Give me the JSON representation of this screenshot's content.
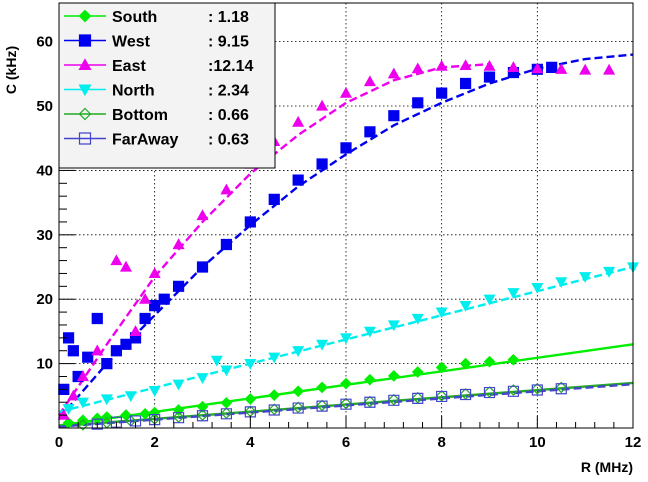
{
  "chart_data": {
    "type": "scatter",
    "xlabel": "R (MHz)",
    "ylabel": "C (kHz)",
    "xlim": [
      0,
      12
    ],
    "ylim": [
      0,
      66
    ],
    "x_ticks": [
      "0",
      "2",
      "4",
      "6",
      "8",
      "10",
      "12"
    ],
    "y_ticks": [
      "10",
      "20",
      "30",
      "40",
      "50",
      "60"
    ],
    "grid": true,
    "legend_position": "top-left",
    "series": [
      {
        "name": "South",
        "legend_value": ": 1.18",
        "color": "#00ee00",
        "marker": "diamond-filled",
        "fit_style": "solid",
        "x": [
          0.2,
          0.5,
          0.8,
          1.0,
          1.4,
          1.8,
          2.0,
          2.5,
          3.0,
          3.5,
          4.0,
          4.5,
          5.0,
          5.5,
          6.0,
          6.5,
          7.0,
          7.5,
          8.0,
          8.5,
          9.0,
          9.5
        ],
        "y": [
          0.8,
          1.2,
          1.5,
          1.7,
          2.0,
          2.2,
          2.4,
          2.8,
          3.3,
          3.9,
          4.5,
          5.1,
          5.7,
          6.3,
          6.9,
          7.5,
          8.1,
          8.7,
          9.4,
          10.0,
          10.3,
          10.6
        ],
        "fit_x": [
          0,
          12
        ],
        "fit_y": [
          0.4,
          13.0
        ]
      },
      {
        "name": "West",
        "legend_value": ": 9.15",
        "color": "#0000ee",
        "marker": "square-filled",
        "fit_style": "dashed",
        "x": [
          0.1,
          0.2,
          0.3,
          0.4,
          0.6,
          0.8,
          1.0,
          1.2,
          1.4,
          1.6,
          1.8,
          2.0,
          2.2,
          2.5,
          3.0,
          3.5,
          4.0,
          4.5,
          5.0,
          5.5,
          6.0,
          6.5,
          7.0,
          7.5,
          8.0,
          8.5,
          9.0,
          9.5,
          10.0,
          10.3
        ],
        "y": [
          6.0,
          14.0,
          12.0,
          8.0,
          11.0,
          17.0,
          10.0,
          12.0,
          13.0,
          14.0,
          17.0,
          19.0,
          20.0,
          22.0,
          25.0,
          28.5,
          32.0,
          35.5,
          38.5,
          41.0,
          43.5,
          46.0,
          48.5,
          50.5,
          52.0,
          53.5,
          54.5,
          55.2,
          55.7,
          56.0
        ],
        "fit_x": [
          0,
          1,
          2,
          3,
          4,
          5,
          6,
          7,
          8,
          9,
          10,
          11,
          12
        ],
        "fit_y": [
          1.5,
          10.0,
          17.5,
          25.0,
          31.5,
          37.5,
          42.5,
          47.0,
          50.5,
          53.5,
          55.8,
          57.3,
          58.0
        ]
      },
      {
        "name": "East",
        "legend_value": ":12.14",
        "color": "#ee00ee",
        "marker": "triangle-up-filled",
        "fit_style": "dashed",
        "x": [
          0.1,
          0.3,
          0.5,
          0.8,
          1.2,
          1.4,
          1.6,
          1.8,
          2.0,
          2.5,
          3.0,
          3.5,
          4.0,
          4.5,
          5.0,
          5.5,
          6.0,
          6.5,
          7.0,
          7.5,
          8.0,
          8.5,
          9.0,
          9.5,
          10.0,
          10.5,
          11.0,
          11.5
        ],
        "y": [
          2.0,
          5.0,
          8.0,
          12.0,
          26.0,
          25.0,
          15.0,
          20.0,
          24.0,
          28.5,
          33.0,
          37.0,
          41.0,
          44.5,
          47.5,
          50.0,
          52.0,
          53.8,
          55.0,
          55.8,
          56.2,
          56.3,
          56.2,
          56.0,
          55.8,
          55.7,
          55.6,
          55.6
        ],
        "fit_x": [
          0,
          1,
          2,
          3,
          4,
          5,
          6,
          7,
          8,
          9
        ],
        "fit_y": [
          2.0,
          13.0,
          23.5,
          32.0,
          39.5,
          45.5,
          50.5,
          54.0,
          56.0,
          56.5
        ]
      },
      {
        "name": "North",
        "legend_value": ": 2.34",
        "color": "#00eeee",
        "marker": "triangle-down-filled",
        "fit_style": "dashed",
        "x": [
          0.2,
          0.5,
          1.0,
          1.5,
          2.0,
          2.5,
          3.0,
          3.3,
          3.5,
          4.0,
          4.5,
          5.0,
          5.5,
          6.0,
          6.5,
          7.0,
          7.5,
          8.0,
          8.5,
          9.0,
          9.5,
          10.0,
          10.5,
          11.0,
          11.5,
          12.0
        ],
        "y": [
          3.0,
          4.0,
          4.5,
          5.0,
          5.8,
          6.8,
          7.8,
          10.5,
          9.0,
          10.0,
          11.0,
          12.0,
          13.0,
          14.0,
          15.0,
          16.0,
          17.0,
          18.0,
          19.0,
          20.0,
          21.0,
          21.8,
          22.7,
          23.5,
          24.3,
          25.0
        ],
        "fit_x": [
          0,
          12
        ],
        "fit_y": [
          2.5,
          25.0
        ]
      },
      {
        "name": "Bottom",
        "legend_value": ": 0.66",
        "color": "#22aa22",
        "marker": "diamond-open",
        "fit_style": "solid",
        "x": [
          0.5,
          1.0,
          1.5,
          2.0,
          2.5,
          3.0,
          3.5,
          4.0,
          4.5,
          5.0,
          5.5,
          6.0,
          6.5,
          7.0,
          7.5,
          8.0,
          8.5,
          9.0,
          9.5,
          10.0,
          10.5
        ],
        "y": [
          0.5,
          0.8,
          1.1,
          1.4,
          1.7,
          2.0,
          2.3,
          2.6,
          2.9,
          3.2,
          3.5,
          3.8,
          4.1,
          4.4,
          4.7,
          5.0,
          5.3,
          5.6,
          5.9,
          6.1,
          6.3
        ],
        "fit_x": [
          0,
          12
        ],
        "fit_y": [
          0.3,
          7.0
        ]
      },
      {
        "name": "FarAway",
        "legend_value": ": 0.63",
        "color": "#4444cc",
        "marker": "square-open",
        "fit_style": "dashed",
        "x": [
          0.8,
          1.2,
          1.6,
          2.0,
          2.5,
          3.0,
          3.5,
          4.0,
          4.5,
          5.0,
          5.5,
          6.0,
          6.5,
          7.0,
          7.5,
          8.0,
          8.5,
          9.0,
          9.5,
          10.0,
          10.5
        ],
        "y": [
          0.6,
          0.9,
          1.1,
          1.3,
          1.6,
          1.9,
          2.2,
          2.5,
          2.8,
          3.1,
          3.4,
          3.7,
          4.0,
          4.3,
          4.6,
          4.9,
          5.2,
          5.5,
          5.7,
          5.9,
          6.1
        ],
        "fit_x": [
          0,
          12
        ],
        "fit_y": [
          0.2,
          6.8
        ]
      }
    ]
  }
}
